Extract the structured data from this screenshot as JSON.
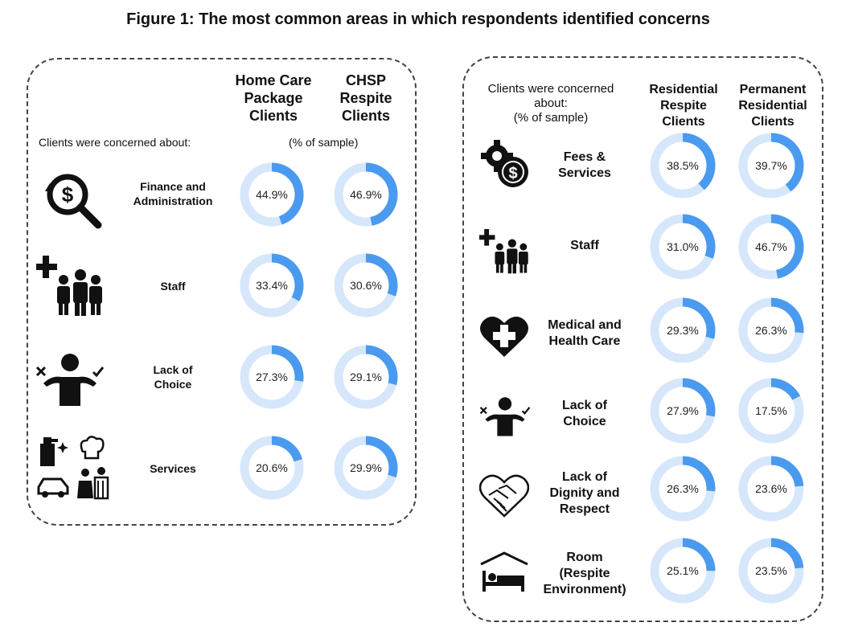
{
  "figure_title": "Figure 1: The most common areas in which respondents identified concerns",
  "colors": {
    "accent": "#4a9aef",
    "track": "#d6e7fb",
    "ink": "#111111"
  },
  "left_panel": {
    "col1": [
      "Home Care",
      "Package",
      "Clients"
    ],
    "col2": [
      "CHSP",
      "Respite",
      "Clients"
    ],
    "subheading": "Clients were concerned about:",
    "unit": "(% of sample)"
  },
  "right_panel": {
    "subheading": [
      "Clients were concerned",
      "about:",
      "(% of sample)"
    ],
    "col1": [
      "Residential",
      "Respite",
      "Clients"
    ],
    "col2": [
      "Permanent",
      "Residential",
      "Clients"
    ]
  },
  "chart_data": [
    {
      "type": "donut",
      "series": [
        "Home Care Package Clients",
        "CHSP Respite Clients"
      ],
      "rows": [
        {
          "category": [
            "Finance and",
            "Administration"
          ],
          "icon": "finance-search-icon",
          "values": [
            44.9,
            46.9
          ],
          "labels": [
            "44.9%",
            "46.9%"
          ]
        },
        {
          "category": [
            "Staff"
          ],
          "icon": "staff-icon",
          "values": [
            33.4,
            30.6
          ],
          "labels": [
            "33.4%",
            "30.6%"
          ]
        },
        {
          "category": [
            "Lack of",
            "Choice"
          ],
          "icon": "choice-icon",
          "values": [
            27.3,
            29.1
          ],
          "labels": [
            "27.3%",
            "29.1%"
          ]
        },
        {
          "category": [
            "Services"
          ],
          "icon": "services-icon",
          "values": [
            20.6,
            29.9
          ],
          "labels": [
            "20.6%",
            "29.9%"
          ]
        }
      ]
    },
    {
      "type": "donut",
      "series": [
        "Residential Respite Clients",
        "Permanent Residential Clients"
      ],
      "rows": [
        {
          "category": [
            "Fees &",
            "Services"
          ],
          "icon": "fees-gear-icon",
          "values": [
            38.5,
            39.7
          ],
          "labels": [
            "38.5%",
            "39.7%"
          ]
        },
        {
          "category": [
            "Staff"
          ],
          "icon": "staff-icon",
          "values": [
            31.0,
            46.7
          ],
          "labels": [
            "31.0%",
            "46.7%"
          ]
        },
        {
          "category": [
            "Medical and",
            "Health Care"
          ],
          "icon": "medical-heart-icon",
          "values": [
            29.3,
            26.3
          ],
          "labels": [
            "29.3%",
            "26.3%"
          ]
        },
        {
          "category": [
            "Lack of",
            "Choice"
          ],
          "icon": "choice-icon",
          "values": [
            27.9,
            17.5
          ],
          "labels": [
            "27.9%",
            "17.5%"
          ]
        },
        {
          "category": [
            "Lack of",
            "Dignity and",
            "Respect"
          ],
          "icon": "dignity-hands-icon",
          "values": [
            26.3,
            23.6
          ],
          "labels": [
            "26.3%",
            "23.6%"
          ]
        },
        {
          "category": [
            "Room",
            "(Respite",
            "Environment)"
          ],
          "icon": "room-bed-icon",
          "values": [
            25.1,
            23.5
          ],
          "labels": [
            "25.1%",
            "23.5%"
          ]
        }
      ]
    }
  ]
}
